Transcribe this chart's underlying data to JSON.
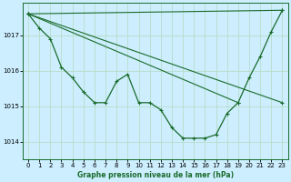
{
  "title": "Graphe pression niveau de la mer (hPa)",
  "bg_color": "#cceeff",
  "grid_color": "#b8ddc8",
  "line_color": "#1a6b2a",
  "xlim": [
    -0.5,
    23.5
  ],
  "ylim": [
    1013.5,
    1017.9
  ],
  "yticks": [
    1014,
    1015,
    1016,
    1017
  ],
  "xticks": [
    0,
    1,
    2,
    3,
    4,
    5,
    6,
    7,
    8,
    9,
    10,
    11,
    12,
    13,
    14,
    15,
    16,
    17,
    18,
    19,
    20,
    21,
    22,
    23
  ],
  "series_main": {
    "x": [
      0,
      1,
      2,
      3,
      4,
      5,
      6,
      7,
      8,
      9,
      10,
      11,
      12,
      13,
      14,
      15,
      16,
      17,
      18,
      19,
      20,
      21,
      22,
      23
    ],
    "y": [
      1017.6,
      1017.2,
      1016.9,
      1016.1,
      1015.8,
      1015.4,
      1015.1,
      1015.1,
      1015.7,
      1015.9,
      1015.1,
      1015.1,
      1014.9,
      1014.4,
      1014.1,
      1014.1,
      1014.1,
      1014.2,
      1014.8,
      1015.1,
      1015.8,
      1016.4,
      1017.1,
      1017.7
    ]
  },
  "series_line1": {
    "x": [
      0,
      23
    ],
    "y": [
      1017.6,
      1015.1
    ]
  },
  "series_line2": {
    "x": [
      0,
      23
    ],
    "y": [
      1017.6,
      1017.7
    ]
  },
  "series_line3": {
    "x": [
      0,
      19
    ],
    "y": [
      1017.6,
      1015.1
    ]
  }
}
